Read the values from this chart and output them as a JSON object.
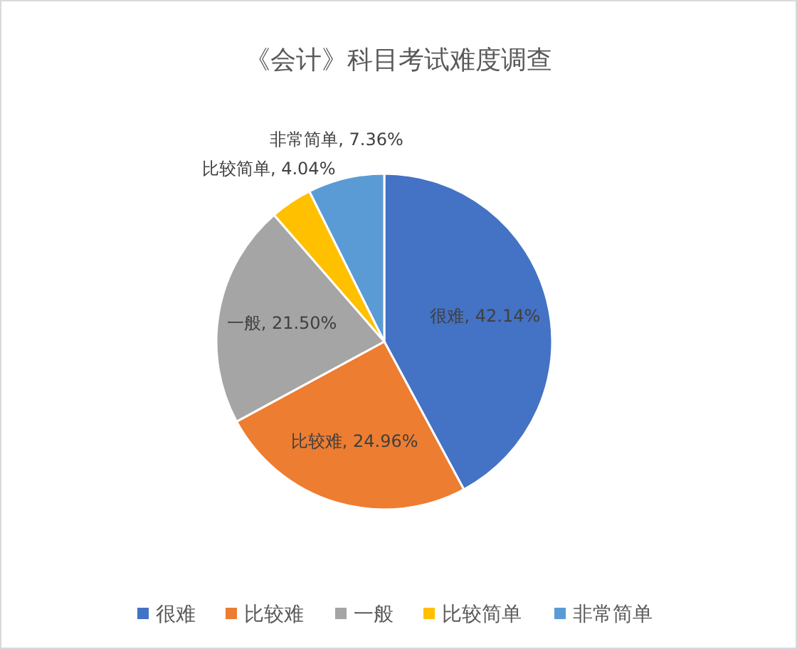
{
  "chart_data": {
    "type": "pie",
    "title": "《会计》科目考试难度调查",
    "categories": [
      "很难",
      "比较难",
      "一般",
      "比较简单",
      "非常简单"
    ],
    "values": [
      42.14,
      24.96,
      21.5,
      4.04,
      7.36
    ],
    "value_labels": [
      "很难, 42.14%",
      "比较难, 24.96%",
      "一般, 21.50%",
      "比较简单, 4.04%",
      "非常简单, 7.36%"
    ],
    "colors": [
      "#4472c4",
      "#ed7d31",
      "#a5a5a5",
      "#ffc000",
      "#5b9bd5"
    ],
    "legend": "bottom"
  }
}
